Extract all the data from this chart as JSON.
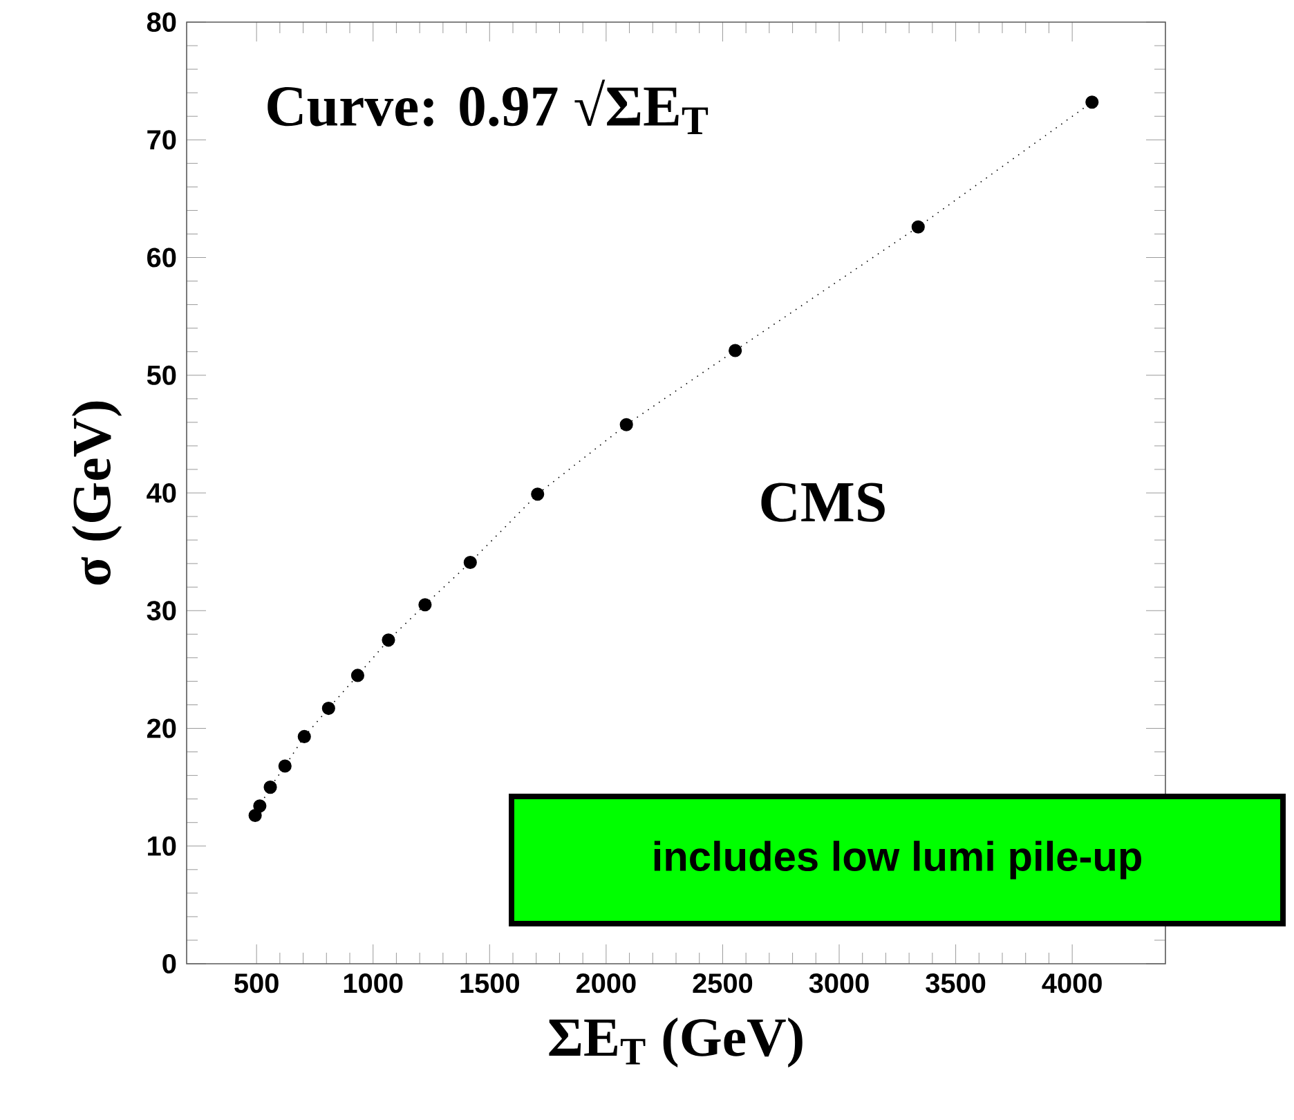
{
  "chart_data": {
    "type": "line",
    "xlabel": "ΣE$_{T}$ (GeV)",
    "ylabel": "σ (GeV)",
    "annotations": [
      "Curve: 0.97  √ΣE$_{T}$",
      "CMS",
      "includes low lumi pile-up"
    ],
    "series": [
      {
        "color": "#000000",
        "marker": "circle",
        "line_style": "dotted",
        "x": [
          494,
          514,
          559,
          622,
          705,
          809,
          934,
          1066,
          1223,
          1417,
          1706,
          2087,
          2554,
          3339,
          4085
        ],
        "values": [
          12.6,
          13.4,
          15.0,
          16.8,
          19.3,
          21.7,
          24.5,
          27.5,
          30.5,
          34.1,
          39.9,
          45.8,
          52.1,
          62.6,
          73.2
        ]
      }
    ],
    "xlim": [
      200,
      4400
    ],
    "xticks": [
      500,
      1000,
      1500,
      2000,
      2500,
      3000,
      3500,
      4000
    ],
    "ylim": [
      0,
      80
    ],
    "yticks": [
      0,
      10,
      20,
      30,
      40,
      50,
      60,
      70,
      80
    ]
  }
}
